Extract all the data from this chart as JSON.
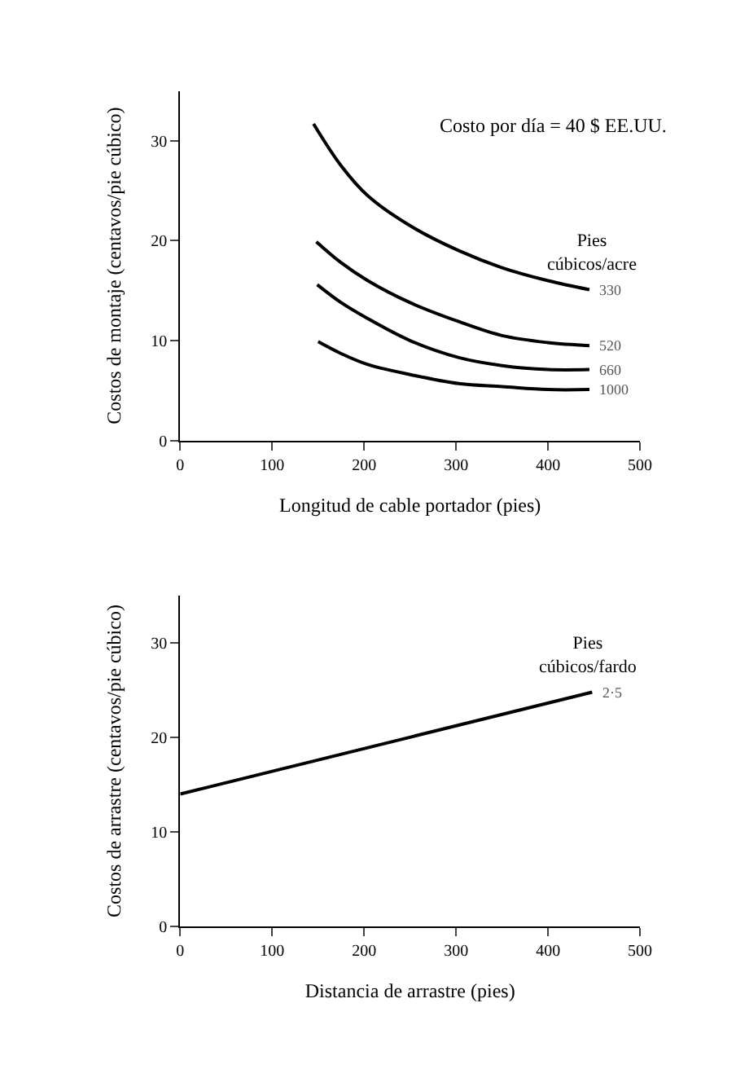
{
  "chart_data": [
    {
      "type": "line",
      "xlabel": "Longitud de cable portador (pies)",
      "ylabel": "Costos de montaje (centavos/pie cúbico)",
      "legend_title": "Pies cúbicos/acre",
      "annotations": [
        "Costo por día = 40 $ EE.UU."
      ],
      "xlim": [
        0,
        500
      ],
      "ylim": [
        0,
        35
      ],
      "xticks": [
        0,
        100,
        200,
        300,
        400,
        500
      ],
      "yticks": [
        0,
        10,
        20,
        30
      ],
      "legend": false,
      "marker": "none",
      "line_style": "solid",
      "series": [
        {
          "name": "330",
          "color": "#000000",
          "x": [
            145,
            175,
            204,
            250,
            303,
            350,
            400,
            445
          ],
          "values": [
            31.7,
            27.5,
            24.5,
            21.5,
            19.0,
            17.3,
            16.0,
            15.1
          ]
        },
        {
          "name": "520",
          "color": "#000000",
          "x": [
            148,
            175,
            204,
            250,
            303,
            350,
            400,
            445
          ],
          "values": [
            19.9,
            17.8,
            16.0,
            13.8,
            11.9,
            10.5,
            9.8,
            9.5
          ]
        },
        {
          "name": "660",
          "color": "#000000",
          "x": [
            149,
            175,
            204,
            250,
            303,
            350,
            400,
            445
          ],
          "values": [
            15.6,
            13.8,
            12.2,
            10.0,
            8.3,
            7.5,
            7.1,
            7.1
          ]
        },
        {
          "name": "1000",
          "color": "#000000",
          "x": [
            150,
            175,
            204,
            250,
            303,
            350,
            400,
            445
          ],
          "values": [
            9.9,
            8.7,
            7.6,
            6.6,
            5.7,
            5.4,
            5.1,
            5.1
          ]
        }
      ]
    },
    {
      "type": "line",
      "xlabel": "Distancia de arrastre (pies)",
      "ylabel": "Costos de arrastre (centavos/pie cúbico)",
      "legend_title": "Pies cúbicos/fardo",
      "xlim": [
        0,
        500
      ],
      "ylim": [
        0,
        35
      ],
      "xticks": [
        0,
        100,
        200,
        300,
        400,
        500
      ],
      "yticks": [
        0,
        10,
        20,
        30
      ],
      "legend": false,
      "marker": "none",
      "line_style": "solid",
      "series": [
        {
          "name": "2·5",
          "color": "#000000",
          "x": [
            0,
            448
          ],
          "values": [
            14.0,
            24.8
          ]
        }
      ]
    }
  ]
}
